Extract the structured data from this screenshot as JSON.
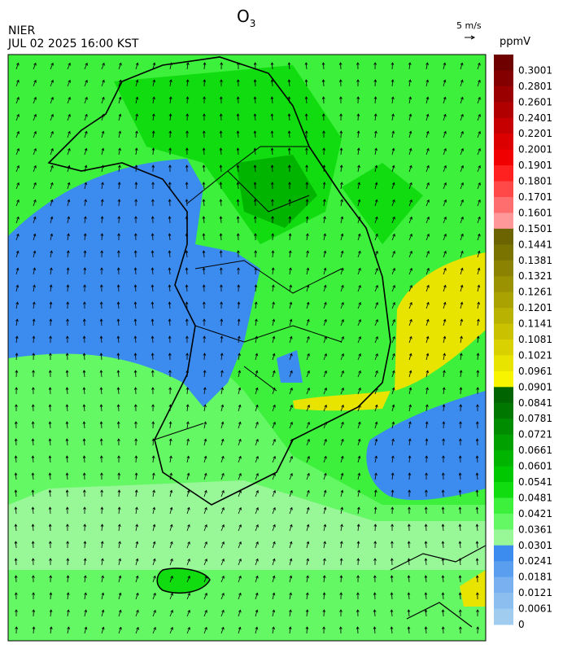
{
  "header": {
    "title": {
      "main": "O",
      "subscript": "3"
    },
    "agency": "NIER",
    "datetime": "JUL 02 2025 16:00 KST",
    "wind_scale": "5 m/s",
    "unit": "ppmV"
  },
  "colorbar": [
    {
      "label": "0.3001",
      "color": "#6e0000"
    },
    {
      "label": "0.2801",
      "color": "#840000"
    },
    {
      "label": "0.2601",
      "color": "#9a0000"
    },
    {
      "label": "0.2401",
      "color": "#b00000"
    },
    {
      "label": "0.2201",
      "color": "#c60000"
    },
    {
      "label": "0.2001",
      "color": "#dc0000"
    },
    {
      "label": "0.1901",
      "color": "#f00000"
    },
    {
      "label": "0.1801",
      "color": "#ff2020"
    },
    {
      "label": "0.1701",
      "color": "#ff4848"
    },
    {
      "label": "0.1601",
      "color": "#ff6e6e"
    },
    {
      "label": "0.1501",
      "color": "#ff9898"
    },
    {
      "label": "0.1441",
      "color": "#6b6400"
    },
    {
      "label": "0.1381",
      "color": "#7a7300"
    },
    {
      "label": "0.1321",
      "color": "#8a8200"
    },
    {
      "label": "0.1261",
      "color": "#9a9200"
    },
    {
      "label": "0.1201",
      "color": "#aaa200"
    },
    {
      "label": "0.1141",
      "color": "#bab200"
    },
    {
      "label": "0.1081",
      "color": "#cac200"
    },
    {
      "label": "0.1021",
      "color": "#dad200"
    },
    {
      "label": "0.0961",
      "color": "#e8e400"
    },
    {
      "label": "0.0901",
      "color": "#f8f400"
    },
    {
      "label": "0.0841",
      "color": "#006400"
    },
    {
      "label": "0.0781",
      "color": "#007800"
    },
    {
      "label": "0.0721",
      "color": "#008c00"
    },
    {
      "label": "0.0661",
      "color": "#00a000"
    },
    {
      "label": "0.0601",
      "color": "#00b400"
    },
    {
      "label": "0.0541",
      "color": "#00c800"
    },
    {
      "label": "0.0481",
      "color": "#10dc10"
    },
    {
      "label": "0.0421",
      "color": "#3cf03c"
    },
    {
      "label": "0.0361",
      "color": "#64f864"
    },
    {
      "label": "0.0301",
      "color": "#98f898"
    },
    {
      "label": "0.0241",
      "color": "#3c8cf0"
    },
    {
      "label": "0.0181",
      "color": "#5a9ef0"
    },
    {
      "label": "0.0121",
      "color": "#78b0f0"
    },
    {
      "label": "0.0061",
      "color": "#8cbef0"
    },
    {
      "label": "0",
      "color": "#a0ccf0"
    }
  ]
}
